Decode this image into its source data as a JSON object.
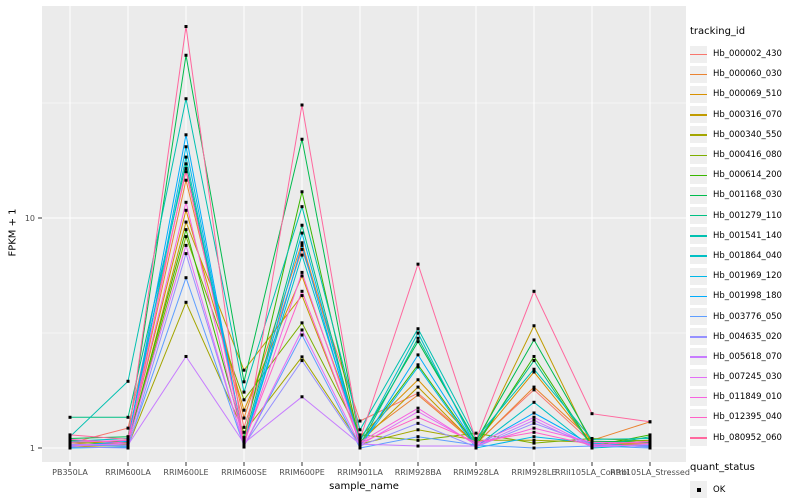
{
  "chart_data": {
    "type": "line",
    "title": "",
    "xlabel": "sample_name",
    "ylabel": "FPKM + 1",
    "y_scale": "log10",
    "y_ticks": [
      {
        "value": 1,
        "label": "1"
      },
      {
        "value": 10,
        "label": "10"
      }
    ],
    "y_minor_ticks": [
      3.1623,
      31.623
    ],
    "ylim_hint": [
      0.94,
      83
    ],
    "grid": "on",
    "panel_bg": "#EBEBEB",
    "grid_color": "#FFFFFF",
    "tick_color": "#333333",
    "tick_label_color": "#4D4D4D",
    "point_color": "#000000",
    "legend_position": "right",
    "color_legend_title": "tracking_id",
    "shape_legend_title": "quant_status",
    "shape_legend_items": [
      {
        "label": "OK",
        "shape": "black-square"
      }
    ],
    "categories": [
      "PB350LA",
      "RRIM600LA",
      "RRIM600LE",
      "RRIM600SE",
      "RRIM600PE",
      "RRIM901LA",
      "RRIM928BA",
      "RRIM928LA",
      "RRIM928LE",
      "RRII105LA_Control",
      "RRII105LA_Stressed"
    ],
    "series": [
      {
        "name": "Hb_000002_430",
        "color": "#F8766D",
        "values": [
          1.05,
          1.22,
          15.9,
          1.23,
          7.3,
          1.31,
          1.73,
          1.05,
          1.79,
          1.05,
          1.02
        ]
      },
      {
        "name": "Hb_000060_030",
        "color": "#EA8331",
        "values": [
          1.02,
          1.06,
          14.6,
          1.35,
          7.8,
          1.1,
          1.7,
          1.04,
          1.84,
          1.08,
          1.3
        ]
      },
      {
        "name": "Hb_000069_510",
        "color": "#D89000",
        "values": [
          1.04,
          1.08,
          10.8,
          1.46,
          5.6,
          1.12,
          1.98,
          1.06,
          2.14,
          1.04,
          1.05
        ]
      },
      {
        "name": "Hb_000316_070",
        "color": "#C09B00",
        "values": [
          1.01,
          1.03,
          9.6,
          2.18,
          4.6,
          1.06,
          1.84,
          1.03,
          3.4,
          1.03,
          1.04
        ]
      },
      {
        "name": "Hb_000340_550",
        "color": "#A3A500",
        "values": [
          1.03,
          1.02,
          4.3,
          1.17,
          2.49,
          1.04,
          1.2,
          1.08,
          1.08,
          1.06,
          1.08
        ]
      },
      {
        "name": "Hb_000416_080",
        "color": "#7CAE00",
        "values": [
          1.06,
          1.04,
          8.3,
          1.62,
          3.5,
          1.14,
          1.08,
          1.16,
          1.05,
          1.1,
          1.07
        ]
      },
      {
        "name": "Hb_000614_200",
        "color": "#39B600",
        "values": [
          1.08,
          1.06,
          8.9,
          1.11,
          13.0,
          1.05,
          2.3,
          1.02,
          2.5,
          1.02,
          1.14
        ]
      },
      {
        "name": "Hb_001168_030",
        "color": "#00BB4E",
        "values": [
          1.1,
          1.12,
          51.0,
          1.94,
          22.0,
          1.08,
          2.9,
          1.07,
          2.95,
          1.07,
          1.06
        ]
      },
      {
        "name": "Hb_001279_110",
        "color": "#00C083",
        "values": [
          1.36,
          1.36,
          17.2,
          1.08,
          9.3,
          1.03,
          3.0,
          1.05,
          2.4,
          1.01,
          1.12
        ]
      },
      {
        "name": "Hb_001541_140",
        "color": "#00C0B0",
        "values": [
          1.12,
          1.95,
          33.0,
          1.75,
          11.2,
          1.2,
          3.3,
          1.1,
          2.2,
          1.09,
          1.1
        ]
      },
      {
        "name": "Hb_001864_040",
        "color": "#00BFC4",
        "values": [
          1.07,
          1.1,
          18.4,
          1.05,
          6.9,
          1.07,
          3.16,
          1.01,
          1.58,
          1.0,
          1.03
        ]
      },
      {
        "name": "Hb_001969_120",
        "color": "#00B7E8",
        "values": [
          1.0,
          1.01,
          20.4,
          1.04,
          8.6,
          1.02,
          2.25,
          1.0,
          1.12,
          1.05,
          1.01
        ]
      },
      {
        "name": "Hb_001998_180",
        "color": "#00ACFC",
        "values": [
          1.02,
          1.07,
          23.0,
          1.03,
          7.6,
          1.01,
          2.54,
          1.02,
          1.42,
          1.03,
          1.02
        ]
      },
      {
        "name": "Hb_003776_050",
        "color": "#5E9EFF",
        "values": [
          1.03,
          1.02,
          5.5,
          1.02,
          3.1,
          1.0,
          1.12,
          1.03,
          1.0,
          1.02,
          1.0
        ]
      },
      {
        "name": "Hb_004635_020",
        "color": "#9590FF",
        "values": [
          1.01,
          1.0,
          7.0,
          1.03,
          2.4,
          1.02,
          1.28,
          1.01,
          1.28,
          1.04,
          1.01
        ]
      },
      {
        "name": "Hb_005618_070",
        "color": "#C77CFF",
        "values": [
          1.04,
          1.03,
          2.5,
          1.05,
          1.67,
          1.04,
          1.02,
          1.02,
          1.32,
          1.01,
          1.04
        ]
      },
      {
        "name": "Hb_007245_030",
        "color": "#E36EF6",
        "values": [
          1.02,
          1.05,
          7.6,
          1.02,
          3.26,
          1.03,
          1.44,
          1.04,
          1.36,
          1.02,
          1.03
        ]
      },
      {
        "name": "Hb_011849_010",
        "color": "#F763E0",
        "values": [
          1.06,
          1.08,
          11.7,
          1.04,
          5.8,
          1.06,
          1.49,
          1.03,
          1.22,
          1.06,
          1.05
        ]
      },
      {
        "name": "Hb_012395_040",
        "color": "#FF61C7",
        "values": [
          1.09,
          1.05,
          16.4,
          1.06,
          4.8,
          1.05,
          1.36,
          1.06,
          1.17,
          1.03,
          1.07
        ]
      },
      {
        "name": "Hb_080952_060",
        "color": "#FF689E",
        "values": [
          1.14,
          1.09,
          68.0,
          1.01,
          31.0,
          1.09,
          6.3,
          1.08,
          4.8,
          1.41,
          1.3
        ]
      }
    ]
  }
}
